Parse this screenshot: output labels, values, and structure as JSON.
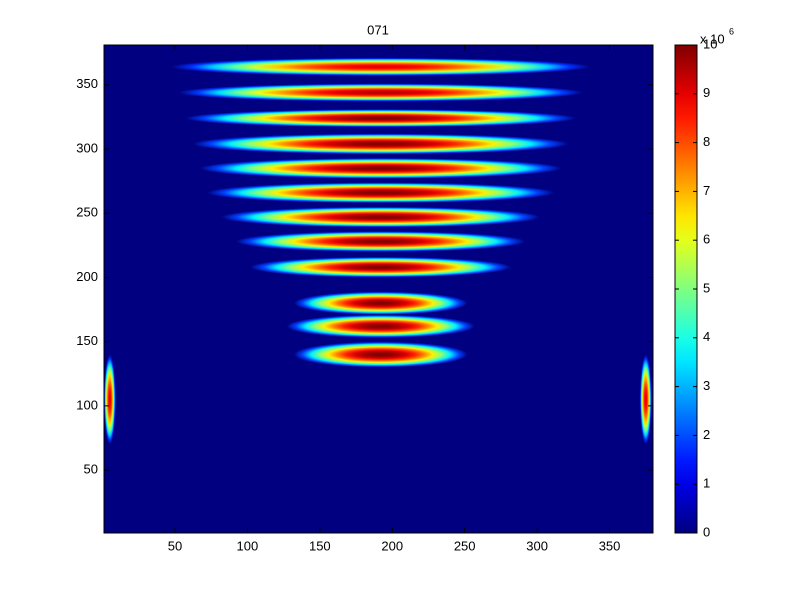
{
  "chart_data": {
    "type": "heatmap",
    "title": "071",
    "xlim": [
      1,
      380
    ],
    "ylim": [
      1,
      381
    ],
    "xticks": [
      50,
      100,
      150,
      200,
      250,
      300,
      350
    ],
    "yticks": [
      50,
      100,
      150,
      200,
      250,
      300,
      350
    ],
    "blobs": {
      "x": [
        192,
        192,
        192,
        192,
        192,
        192,
        192,
        192,
        192,
        192,
        192,
        192,
        5,
        375
      ],
      "y": [
        140,
        162,
        180,
        208,
        228,
        247,
        266,
        285,
        304,
        324,
        344,
        364,
        105,
        105
      ],
      "x_radius": [
        60,
        65,
        60,
        90,
        100,
        110,
        120,
        125,
        130,
        135,
        140,
        145,
        4,
        4
      ],
      "y_radius": [
        10,
        9,
        9,
        8,
        8,
        8,
        8,
        8,
        8,
        7,
        7,
        7,
        35,
        35
      ],
      "values": [
        10,
        10,
        10,
        10,
        10,
        10,
        10,
        10,
        10,
        10,
        9.5,
        9,
        9,
        9
      ]
    },
    "colorbar": {
      "lim": [
        0,
        10
      ],
      "ticks": [
        0,
        1,
        2,
        3,
        4,
        5,
        6,
        7,
        8,
        9,
        10
      ],
      "multiplier": "x 10",
      "exponent": "6"
    }
  }
}
